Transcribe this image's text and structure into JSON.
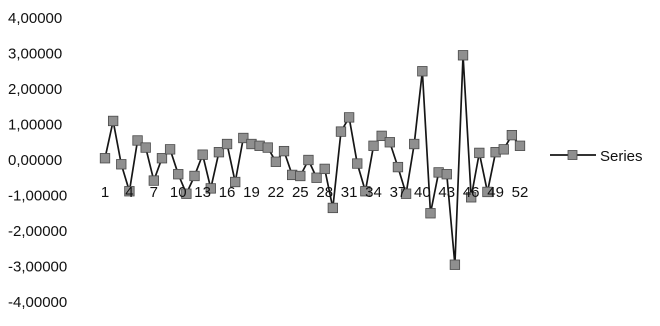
{
  "chart_data": {
    "type": "line",
    "title": "",
    "xlabel": "",
    "ylabel": "",
    "ylim": [
      -4,
      4
    ],
    "grid": false,
    "legend_placement": "right",
    "y_ticks": [
      4,
      3,
      2,
      1,
      0,
      -1,
      -2,
      -3,
      -4
    ],
    "y_tick_labels": [
      "4,00000",
      "3,00000",
      "2,00000",
      "1,00000",
      "0,00000",
      "-1,00000",
      "-2,00000",
      "-3,00000",
      "-4,00000"
    ],
    "x": [
      1,
      2,
      3,
      4,
      5,
      6,
      7,
      8,
      9,
      10,
      11,
      12,
      13,
      14,
      15,
      16,
      17,
      18,
      19,
      20,
      21,
      22,
      23,
      24,
      25,
      26,
      27,
      28,
      29,
      30,
      31,
      32,
      33,
      34,
      35,
      36,
      37,
      38,
      39,
      40,
      41,
      42,
      43,
      44,
      45,
      46,
      47,
      48,
      49,
      50,
      51,
      52
    ],
    "x_tick_labels": [
      "1",
      "4",
      "7",
      "10",
      "13",
      "16",
      "19",
      "22",
      "25",
      "28",
      "31",
      "34",
      "37",
      "40",
      "43",
      "46",
      "49",
      "52"
    ],
    "x_tick_positions": [
      1,
      4,
      7,
      10,
      13,
      16,
      19,
      22,
      25,
      28,
      31,
      34,
      37,
      40,
      43,
      46,
      49,
      52
    ],
    "series": [
      {
        "name": "Series",
        "color": "#161616",
        "marker_color": "#8f8f8f",
        "values": [
          0.05,
          1.1,
          -0.12,
          -0.88,
          0.55,
          0.35,
          -0.58,
          0.05,
          0.3,
          -0.4,
          -0.95,
          -0.45,
          0.15,
          -0.8,
          0.22,
          0.45,
          -0.62,
          0.62,
          0.45,
          0.4,
          0.35,
          -0.05,
          0.25,
          -0.42,
          -0.45,
          0.0,
          -0.5,
          -0.25,
          -1.35,
          0.8,
          1.2,
          -0.1,
          -0.88,
          0.4,
          0.68,
          0.5,
          -0.2,
          -0.95,
          0.45,
          2.5,
          -1.5,
          -0.35,
          -0.4,
          -2.95,
          2.95,
          -1.05,
          0.2,
          -0.9,
          0.22,
          0.3,
          0.7,
          0.4
        ]
      }
    ]
  }
}
